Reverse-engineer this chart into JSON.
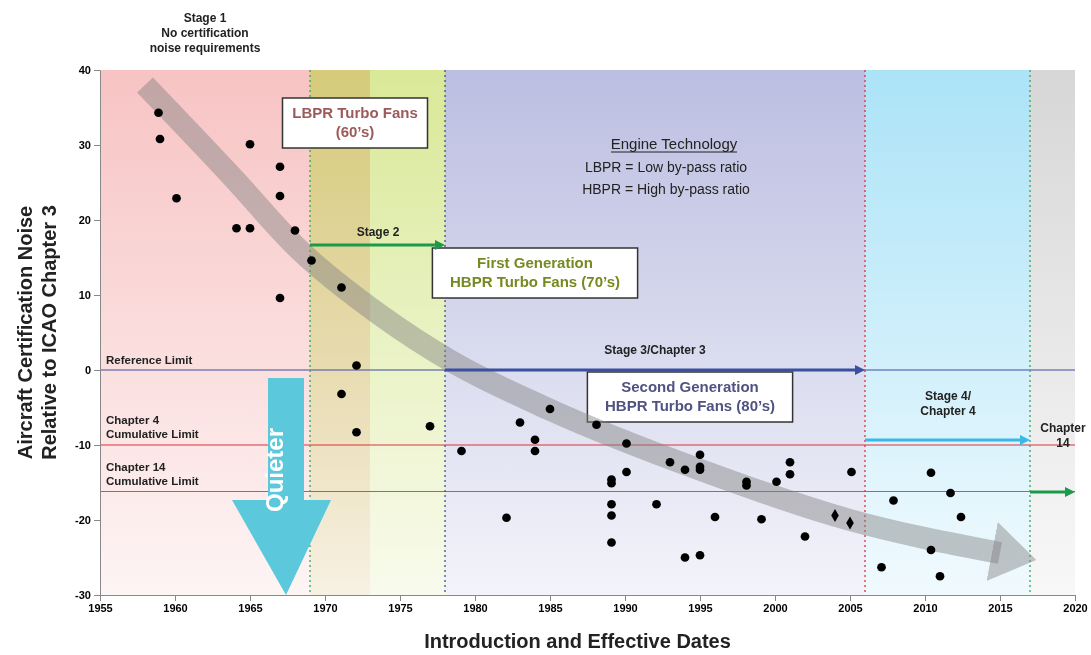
{
  "chart_data": {
    "type": "scatter",
    "xlabel": "Introduction and Effective Dates",
    "ylabel": "Aircraft Certification Noise\nRelative to ICAO Chapter 3",
    "xlim": [
      1955,
      2020
    ],
    "xticks": [
      1955,
      1960,
      1965,
      1970,
      1975,
      1980,
      1985,
      1990,
      1995,
      2000,
      2005,
      2010,
      2015,
      2020
    ],
    "ylim": [
      -30,
      40
    ],
    "yticks": [
      -30,
      -20,
      -10,
      0,
      10,
      20,
      30,
      40
    ],
    "series": [
      {
        "marker": "circle",
        "color": "#000000",
        "x": [
          1958.9,
          1959,
          1960.1,
          1964.1,
          1965,
          1965,
          1967,
          1967,
          1968,
          1969.1,
          1971.1,
          1967,
          1972.1,
          1971.1,
          1972.1,
          1977,
          1979.1,
          1982.1,
          1983,
          1984,
          1984,
          1985,
          1988.1,
          1989.1,
          1989.1,
          1989.1,
          1989.1,
          1989.1,
          1990.1,
          1990.1,
          1992.1,
          1993,
          1994,
          1994,
          1995,
          1995,
          1995,
          1995,
          1996,
          1998.1,
          1998.1,
          1999.1,
          2000.1,
          2001,
          2001,
          2002,
          2005.1,
          2010.4,
          2011.7,
          2007.9,
          2012.4,
          2010.4,
          2007.1,
          2011
        ],
        "values": [
          34.3,
          30.8,
          22.9,
          18.9,
          18.9,
          30.1,
          27.1,
          23.2,
          18.6,
          14.6,
          11,
          9.6,
          0.6,
          -3.2,
          -8.3,
          -7.5,
          -10.8,
          -19.7,
          -7,
          -9.3,
          -10.8,
          -5.2,
          -7.3,
          -14.6,
          -15.1,
          -17.9,
          -19.4,
          -23,
          -9.8,
          -13.6,
          -17.9,
          -12.3,
          -13.3,
          -25,
          -11.3,
          -12.9,
          -13.3,
          -24.7,
          -19.6,
          -14.9,
          -15.4,
          -19.9,
          -14.9,
          -12.3,
          -13.9,
          -22.2,
          -13.6,
          -13.7,
          -16.4,
          -17.4,
          -19.6,
          -24,
          -26.3,
          -27.5
        ]
      },
      {
        "marker": "diamond",
        "color": "#000000",
        "x": [
          2004,
          2005
        ],
        "values": [
          -19.4,
          -20.4
        ]
      },
      {
        "type": "line",
        "color": "#808080",
        "x": [
          1958,
          1963.7,
          1968.3,
          1973.7,
          1978.3,
          1985,
          1995,
          2005,
          2015
        ],
        "values": [
          38,
          26,
          16,
          7.3,
          1.3,
          -5.3,
          -13.3,
          -20,
          -24.4
        ]
      }
    ],
    "ref_lines": [
      {
        "axis": "y",
        "value": 0,
        "label": "Reference Limit",
        "color": "#3a4fa0",
        "line_style": "solid"
      },
      {
        "axis": "y",
        "value": -10,
        "label": "Chapter 4\nCumulative Limit",
        "color": "#e0303a",
        "line_style": "solid"
      },
      {
        "axis": "y",
        "value": -16.2,
        "label": "Chapter 14\nCumulative Limit",
        "color": "#2aa56a",
        "line_style": "solid"
      },
      {
        "axis": "x",
        "value": 1969,
        "color": "#2aa56a",
        "line_style": "dotted"
      },
      {
        "axis": "x",
        "value": 1978,
        "color": "#3a4fa0",
        "line_style": "dotted"
      },
      {
        "axis": "x",
        "value": 2006,
        "color": "#e0303a",
        "line_style": "dotted"
      },
      {
        "axis": "x",
        "value": 2017,
        "color": "#2aa56a",
        "line_style": "dotted"
      }
    ],
    "bands": [
      {
        "axis": "x",
        "from": 1955,
        "to": 1973,
        "label": "LBPR Turbo Fans\n(60’s)",
        "color": "#f08a8a"
      },
      {
        "axis": "x",
        "from": 1969,
        "to": 1978,
        "label": "First Generation\nHBPR Turbo Fans (70’s)",
        "color": "#b5d334"
      },
      {
        "axis": "x",
        "from": 1978,
        "to": 2006,
        "label": "Second  Generation\nHBPR Turbo Fans (80’s)",
        "color": "#7b80c4"
      },
      {
        "axis": "x",
        "from": 2006,
        "to": 2017,
        "color": "#5bc8f0"
      },
      {
        "axis": "x",
        "from": 2017,
        "to": 2020,
        "color": "#b0b0b0"
      }
    ],
    "annotations": [
      "Stage 1\nNo certification\nnoise requirements",
      "Engine Technology",
      "LBPR =  Low by-pass ratio",
      "HBPR = High by-pass ratio",
      "Quieter",
      "Stage 2",
      "Stage 3/Chapter 3",
      "Stage 4/\nChapter 4",
      "Chapter\n14"
    ]
  }
}
